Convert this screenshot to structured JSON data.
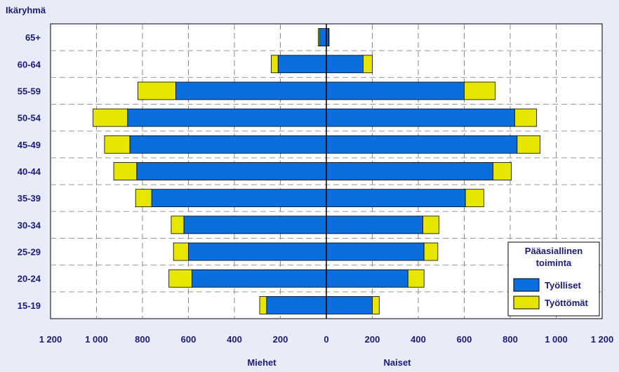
{
  "chart_data": {
    "type": "bar",
    "orientation": "horizontal",
    "layout": "population-pyramid-stacked",
    "title": "Ikäryhmä",
    "categories": [
      "65+",
      "60-64",
      "55-59",
      "50-54",
      "45-49",
      "40-44",
      "35-39",
      "30-34",
      "25-29",
      "20-24",
      "15-19"
    ],
    "groups": [
      {
        "name": "Miehet",
        "side": "left",
        "series": [
          {
            "name": "Työlliset",
            "values": [
              30,
              210,
              655,
              865,
              855,
              825,
              760,
              620,
              600,
              585,
              260
            ]
          },
          {
            "name": "Työttömät",
            "values": [
              5,
              30,
              165,
              150,
              110,
              100,
              70,
              55,
              65,
              100,
              30
            ]
          }
        ]
      },
      {
        "name": "Naiset",
        "side": "right",
        "series": [
          {
            "name": "Työlliset",
            "values": [
              10,
              160,
              600,
              820,
              830,
              725,
              605,
              420,
              425,
              355,
              200
            ]
          },
          {
            "name": "Työttömät",
            "values": [
              2,
              40,
              135,
              95,
              100,
              80,
              80,
              70,
              60,
              70,
              30
            ]
          }
        ]
      }
    ],
    "xlim": [
      -1200,
      1200
    ],
    "xticks": [
      -1200,
      -1000,
      -800,
      -600,
      -400,
      -200,
      0,
      200,
      400,
      600,
      800,
      1000,
      1200
    ],
    "xtick_labels": [
      "1 200",
      "1 000",
      "800",
      "600",
      "400",
      "200",
      "0",
      "200",
      "400",
      "600",
      "800",
      "1 000",
      "1 200"
    ],
    "legend": {
      "title_lines": [
        "Pääasiallinen",
        "toiminta"
      ],
      "placement": "bottom-right",
      "entries": [
        {
          "name": "Työlliset",
          "color": "#0a6fdc"
        },
        {
          "name": "Työttömät",
          "color": "#e6e600"
        }
      ]
    },
    "grid": {
      "vertical": true,
      "horizontal": true,
      "style": "dashed"
    },
    "colors": {
      "employed": "#0a6fdc",
      "unemployed": "#e6e600",
      "plot_bg": "#ffffff",
      "page_bg": "#e8ecf8",
      "text": "#1a1a7a"
    }
  }
}
